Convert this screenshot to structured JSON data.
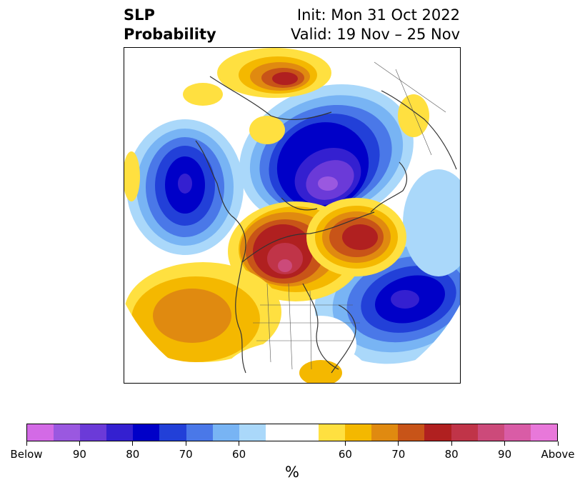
{
  "title": {
    "left_line1": "SLP",
    "left_line2": "Probability",
    "right_line1": "Init: Mon 31 Oct 2022",
    "right_line2": "Valid: 19 Nov – 25 Nov"
  },
  "colorbar": {
    "unit": "%",
    "colors": [
      "#d36ae6",
      "#9a58e0",
      "#6b3ad8",
      "#3420d0",
      "#0000c8",
      "#2240d8",
      "#4a78e8",
      "#78b4f4",
      "#aad8fa",
      "#ffffff",
      "#ffffff",
      "#ffe040",
      "#f4b800",
      "#e08a10",
      "#c85418",
      "#b02020",
      "#c03448",
      "#cc4a7a",
      "#d95ca6",
      "#e878da"
    ],
    "labels": [
      "Below",
      "90",
      "80",
      "70",
      "60",
      "60",
      "70",
      "80",
      "90",
      "Above"
    ]
  },
  "map": {
    "projection": "north-polar-stereographic",
    "anomalies": [
      {
        "name": "arctic-low",
        "sign": "below",
        "peak": "Below"
      },
      {
        "name": "north-pacific-low",
        "sign": "below",
        "peak": "90"
      },
      {
        "name": "north-atlantic-low",
        "sign": "below",
        "peak": "90"
      },
      {
        "name": "alaska-canada-high",
        "sign": "above",
        "peak": "90"
      },
      {
        "name": "greenland-high",
        "sign": "above",
        "peak": "80"
      },
      {
        "name": "siberia-high",
        "sign": "above",
        "peak": "80"
      },
      {
        "name": "subtropical-pacific-high",
        "sign": "above",
        "peak": "70"
      }
    ]
  }
}
